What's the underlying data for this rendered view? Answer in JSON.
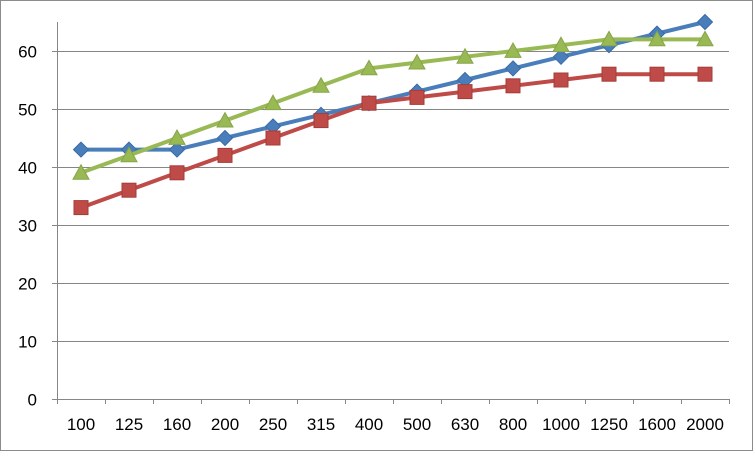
{
  "chart_data": {
    "type": "line",
    "title": "",
    "xlabel": "",
    "ylabel": "",
    "categories": [
      "100",
      "125",
      "160",
      "200",
      "250",
      "315",
      "400",
      "500",
      "630",
      "800",
      "1000",
      "1250",
      "1600",
      "2000"
    ],
    "ylim": [
      0,
      65
    ],
    "yticks": [
      0,
      10,
      20,
      30,
      40,
      50,
      60
    ],
    "grid": "horizontal",
    "legend": "none",
    "series": [
      {
        "color": "#4a7ebb",
        "marker": "diamond",
        "values": [
          43,
          43,
          43,
          45,
          47,
          49,
          51,
          53,
          55,
          57,
          59,
          61,
          63,
          65
        ]
      },
      {
        "color": "#be4b48",
        "marker": "square",
        "values": [
          33,
          36,
          39,
          42,
          45,
          48,
          51,
          52,
          53,
          54,
          55,
          56,
          56,
          56
        ]
      },
      {
        "color": "#98b954",
        "marker": "triangle",
        "values": [
          39,
          42,
          45,
          48,
          51,
          54,
          57,
          58,
          59,
          60,
          61,
          62,
          62,
          62
        ]
      }
    ]
  }
}
